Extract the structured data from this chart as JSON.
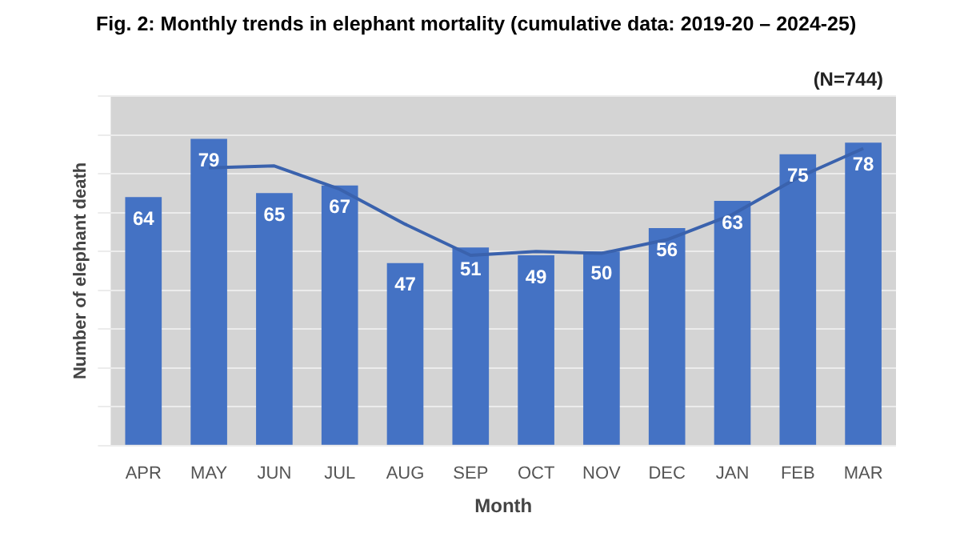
{
  "chart_data": {
    "type": "bar",
    "title": "Fig. 2: Monthly trends in elephant mortality (cumulative data: 2019-20 – 2024-25)",
    "xlabel": "Month",
    "ylabel": "Number of elephant death",
    "categories": [
      "APR",
      "MAY",
      "JUN",
      "JUL",
      "AUG",
      "SEP",
      "OCT",
      "NOV",
      "DEC",
      "JAN",
      "FEB",
      "MAR"
    ],
    "series": [
      {
        "color": "#4472c4",
        "values": [
          64,
          79,
          65,
          67,
          47,
          51,
          49,
          50,
          56,
          63,
          75,
          78
        ],
        "value_labels": [
          "64",
          "79",
          "65",
          "67",
          "47",
          "51",
          "49",
          "50",
          "56",
          "63",
          "75",
          "78"
        ]
      },
      {
        "type": "line",
        "color": "#3a62ad",
        "values": [
          null,
          71.5,
          72,
          66,
          57,
          49,
          50,
          49.5,
          53,
          59.5,
          69,
          76.5
        ]
      }
    ],
    "ylim": [
      0,
      90
    ],
    "yticks": [
      {
        "value": 0,
        "label": null
      },
      {
        "value": 10,
        "label": null
      },
      {
        "value": 20,
        "label": null
      },
      {
        "value": 30,
        "label": null
      },
      {
        "value": 40,
        "label": null
      },
      {
        "value": 50,
        "label": null
      },
      {
        "value": 60,
        "label": null
      },
      {
        "value": 70,
        "label": null
      },
      {
        "value": 80,
        "label": null
      },
      {
        "value": 90,
        "label": null
      }
    ],
    "tick_labels": "x",
    "grid": "y",
    "legend": false,
    "marker": "none",
    "annotations": [
      "(N=744)"
    ]
  }
}
